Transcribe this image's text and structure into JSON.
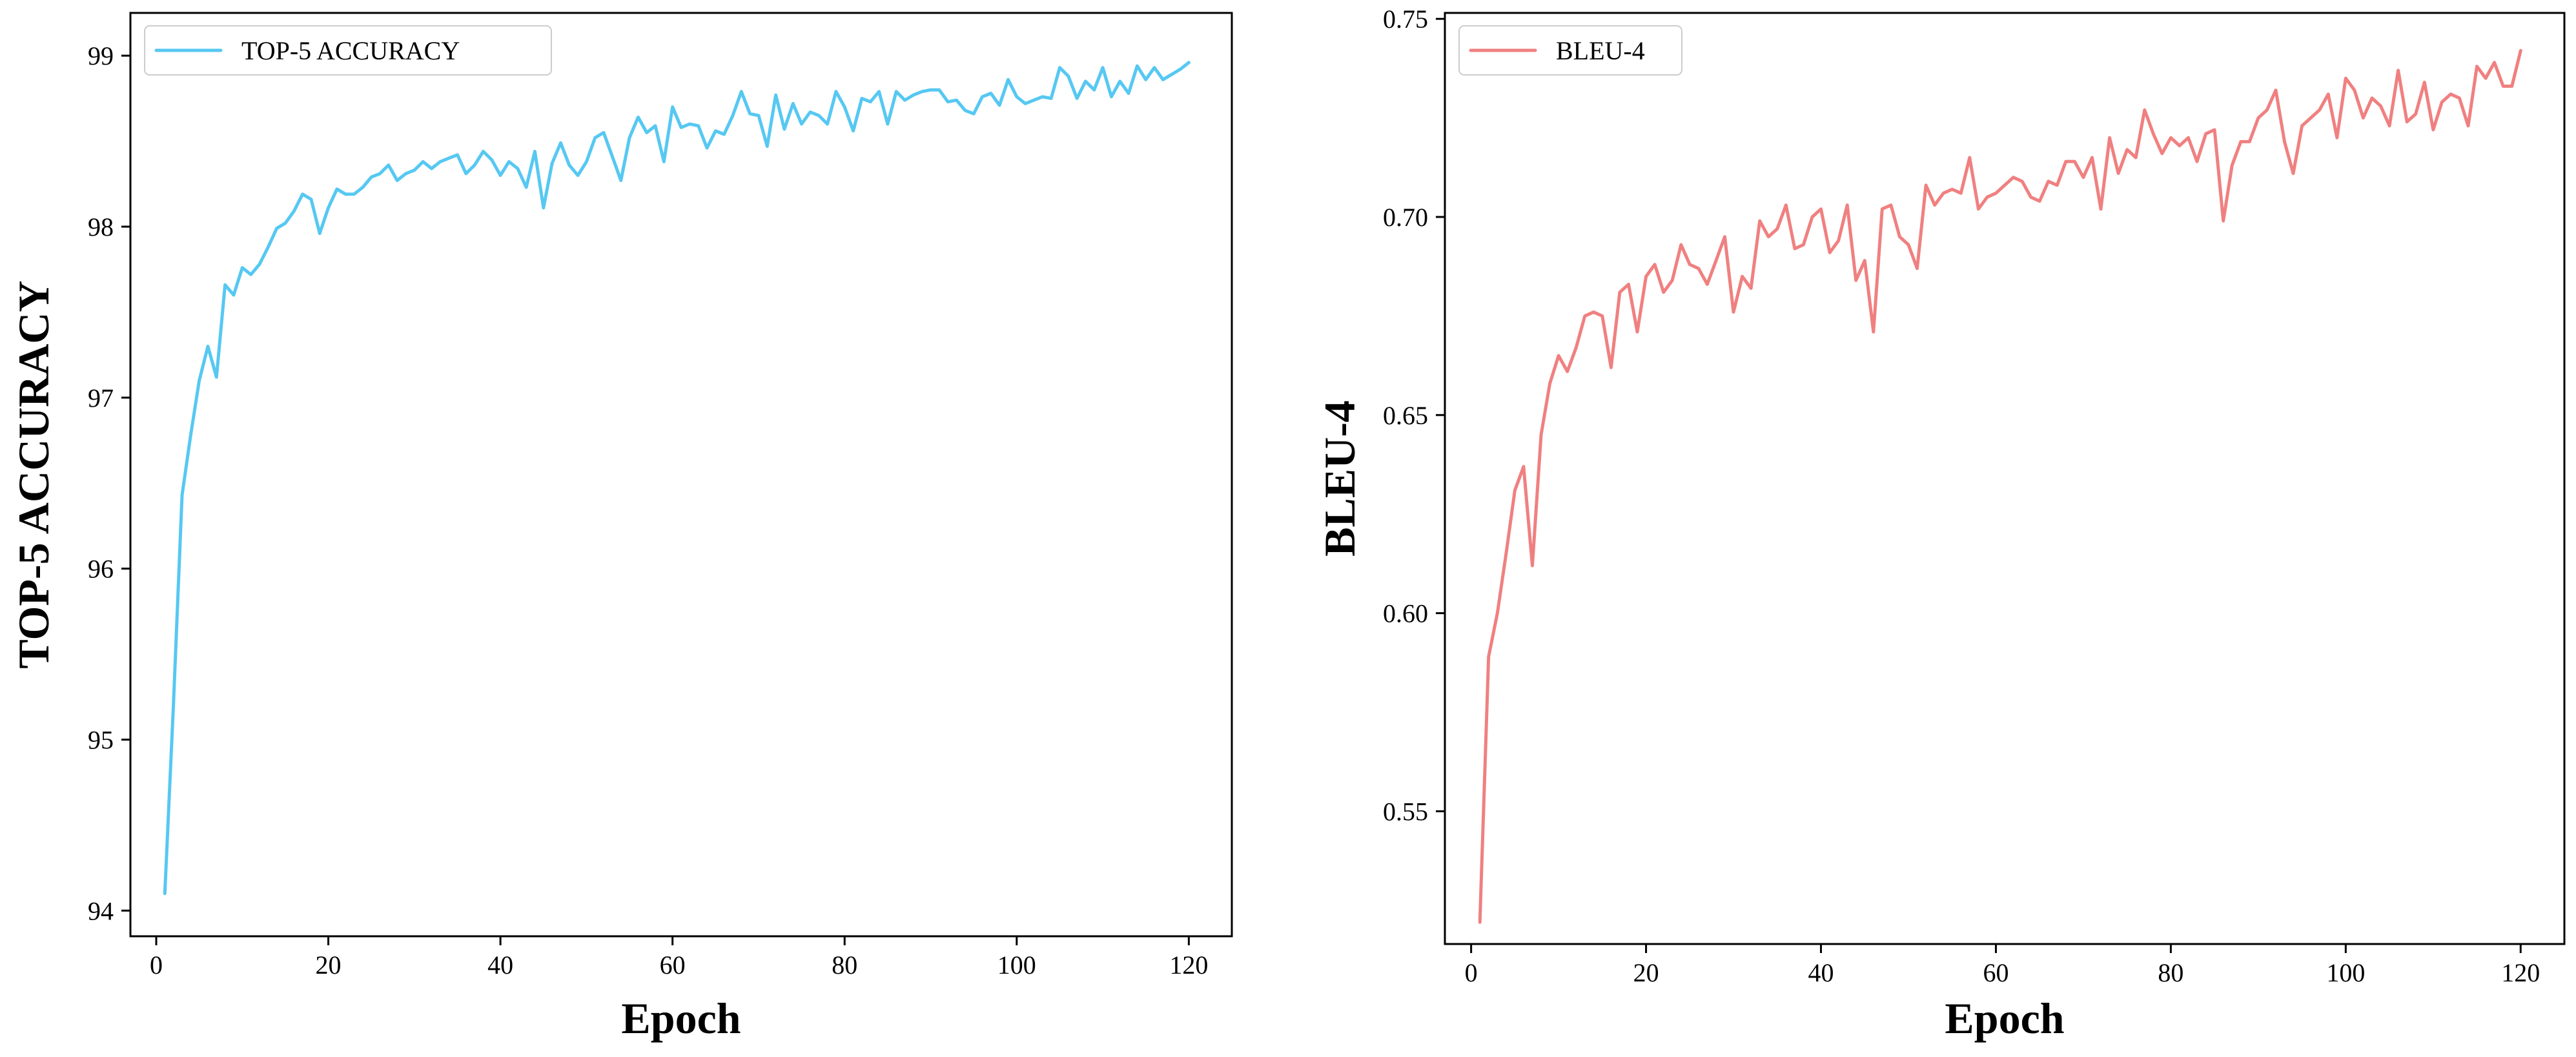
{
  "chart_data": [
    {
      "type": "line",
      "xlabel": "Epoch",
      "ylabel": "TOP-5 ACCURACY",
      "xlim": [
        -3.0,
        125.0
      ],
      "ylim": [
        93.85,
        99.25
      ],
      "xticks": [
        0,
        20,
        40,
        60,
        80,
        100,
        120
      ],
      "yticks": [
        94,
        95,
        96,
        97,
        98,
        99
      ],
      "legend_position": "top-left",
      "grid": false,
      "series": [
        {
          "name": "TOP-5 ACCURACY",
          "color": "#56c8f2",
          "x": [
            1,
            2,
            3,
            4,
            5,
            6,
            7,
            8,
            9,
            10,
            11,
            12,
            13,
            14,
            15,
            16,
            17,
            18,
            19,
            20,
            21,
            22,
            23,
            24,
            25,
            26,
            27,
            28,
            29,
            30,
            31,
            32,
            33,
            34,
            35,
            36,
            37,
            38,
            39,
            40,
            41,
            42,
            43,
            44,
            45,
            46,
            47,
            48,
            49,
            50,
            51,
            52,
            53,
            54,
            55,
            56,
            57,
            58,
            59,
            60,
            61,
            62,
            63,
            64,
            65,
            66,
            67,
            68,
            69,
            70,
            71,
            72,
            73,
            74,
            75,
            76,
            77,
            78,
            79,
            80,
            81,
            82,
            83,
            84,
            85,
            86,
            87,
            88,
            89,
            90,
            91,
            92,
            93,
            94,
            95,
            96,
            97,
            98,
            99,
            100,
            101,
            102,
            103,
            104,
            105,
            106,
            107,
            108,
            109,
            110,
            111,
            112,
            113,
            114,
            115,
            116,
            117,
            118,
            119,
            120
          ],
          "y": [
            94.1,
            95.2,
            96.43,
            96.78,
            97.1,
            97.3,
            97.12,
            97.66,
            97.6,
            97.76,
            97.72,
            97.78,
            97.88,
            97.99,
            98.02,
            98.09,
            98.19,
            98.16,
            97.96,
            98.11,
            98.22,
            98.19,
            98.19,
            98.23,
            98.29,
            98.31,
            98.36,
            98.27,
            98.31,
            98.33,
            98.38,
            98.34,
            98.38,
            98.4,
            98.42,
            98.31,
            98.36,
            98.44,
            98.39,
            98.3,
            98.38,
            98.34,
            98.23,
            98.44,
            98.11,
            98.37,
            98.49,
            98.36,
            98.3,
            98.38,
            98.52,
            98.55,
            98.41,
            98.27,
            98.52,
            98.64,
            98.55,
            98.59,
            98.38,
            98.7,
            98.58,
            98.6,
            98.59,
            98.46,
            98.56,
            98.54,
            98.65,
            98.79,
            98.66,
            98.65,
            98.47,
            98.77,
            98.57,
            98.72,
            98.6,
            98.67,
            98.65,
            98.6,
            98.79,
            98.7,
            98.56,
            98.75,
            98.73,
            98.79,
            98.6,
            98.79,
            98.74,
            98.77,
            98.79,
            98.8,
            98.8,
            98.73,
            98.74,
            98.68,
            98.66,
            98.76,
            98.78,
            98.71,
            98.86,
            98.76,
            98.72,
            98.74,
            98.76,
            98.75,
            98.93,
            98.88,
            98.75,
            98.85,
            98.8,
            98.93,
            98.76,
            98.85,
            98.78,
            98.94,
            98.86,
            98.93,
            98.86,
            98.89,
            98.92,
            98.96
          ]
        }
      ]
    },
    {
      "type": "line",
      "xlabel": "Epoch",
      "ylabel": "BLEU-4",
      "xlim": [
        -3.0,
        125.0
      ],
      "ylim": [
        0.5165,
        0.7515
      ],
      "xticks": [
        0,
        20,
        40,
        60,
        80,
        100,
        120
      ],
      "yticks": [
        0.55,
        0.6,
        0.65,
        0.7,
        0.75
      ],
      "ytick_labels": [
        "0.55",
        "0.60",
        "0.65",
        "0.70",
        "0.75"
      ],
      "legend_position": "top-left",
      "grid": false,
      "series": [
        {
          "name": "BLEU-4",
          "color": "#f08080",
          "x": [
            1,
            2,
            3,
            4,
            5,
            6,
            7,
            8,
            9,
            10,
            11,
            12,
            13,
            14,
            15,
            16,
            17,
            18,
            19,
            20,
            21,
            22,
            23,
            24,
            25,
            26,
            27,
            28,
            29,
            30,
            31,
            32,
            33,
            34,
            35,
            36,
            37,
            38,
            39,
            40,
            41,
            42,
            43,
            44,
            45,
            46,
            47,
            48,
            49,
            50,
            51,
            52,
            53,
            54,
            55,
            56,
            57,
            58,
            59,
            60,
            61,
            62,
            63,
            64,
            65,
            66,
            67,
            68,
            69,
            70,
            71,
            72,
            73,
            74,
            75,
            76,
            77,
            78,
            79,
            80,
            81,
            82,
            83,
            84,
            85,
            86,
            87,
            88,
            89,
            90,
            91,
            92,
            93,
            94,
            95,
            96,
            97,
            98,
            99,
            100,
            101,
            102,
            103,
            104,
            105,
            106,
            107,
            108,
            109,
            110,
            111,
            112,
            113,
            114,
            115,
            116,
            117,
            118,
            119,
            120
          ],
          "y": [
            0.522,
            0.589,
            0.6,
            0.615,
            0.631,
            0.637,
            0.612,
            0.645,
            0.658,
            0.665,
            0.661,
            0.667,
            0.675,
            0.676,
            0.675,
            0.662,
            0.681,
            0.683,
            0.671,
            0.685,
            0.688,
            0.681,
            0.684,
            0.693,
            0.688,
            0.687,
            0.683,
            0.689,
            0.695,
            0.676,
            0.685,
            0.682,
            0.699,
            0.695,
            0.697,
            0.703,
            0.692,
            0.693,
            0.7,
            0.702,
            0.691,
            0.694,
            0.703,
            0.684,
            0.689,
            0.671,
            0.702,
            0.703,
            0.695,
            0.693,
            0.687,
            0.708,
            0.703,
            0.706,
            0.707,
            0.706,
            0.715,
            0.702,
            0.705,
            0.706,
            0.708,
            0.71,
            0.709,
            0.705,
            0.704,
            0.709,
            0.708,
            0.714,
            0.714,
            0.71,
            0.715,
            0.702,
            0.72,
            0.711,
            0.717,
            0.715,
            0.727,
            0.721,
            0.716,
            0.72,
            0.718,
            0.72,
            0.714,
            0.721,
            0.722,
            0.699,
            0.713,
            0.719,
            0.719,
            0.725,
            0.727,
            0.732,
            0.719,
            0.711,
            0.723,
            0.725,
            0.727,
            0.731,
            0.72,
            0.735,
            0.732,
            0.725,
            0.73,
            0.728,
            0.723,
            0.737,
            0.724,
            0.726,
            0.734,
            0.722,
            0.729,
            0.731,
            0.73,
            0.723,
            0.738,
            0.735,
            0.739,
            0.733,
            0.733,
            0.742
          ]
        }
      ]
    }
  ]
}
